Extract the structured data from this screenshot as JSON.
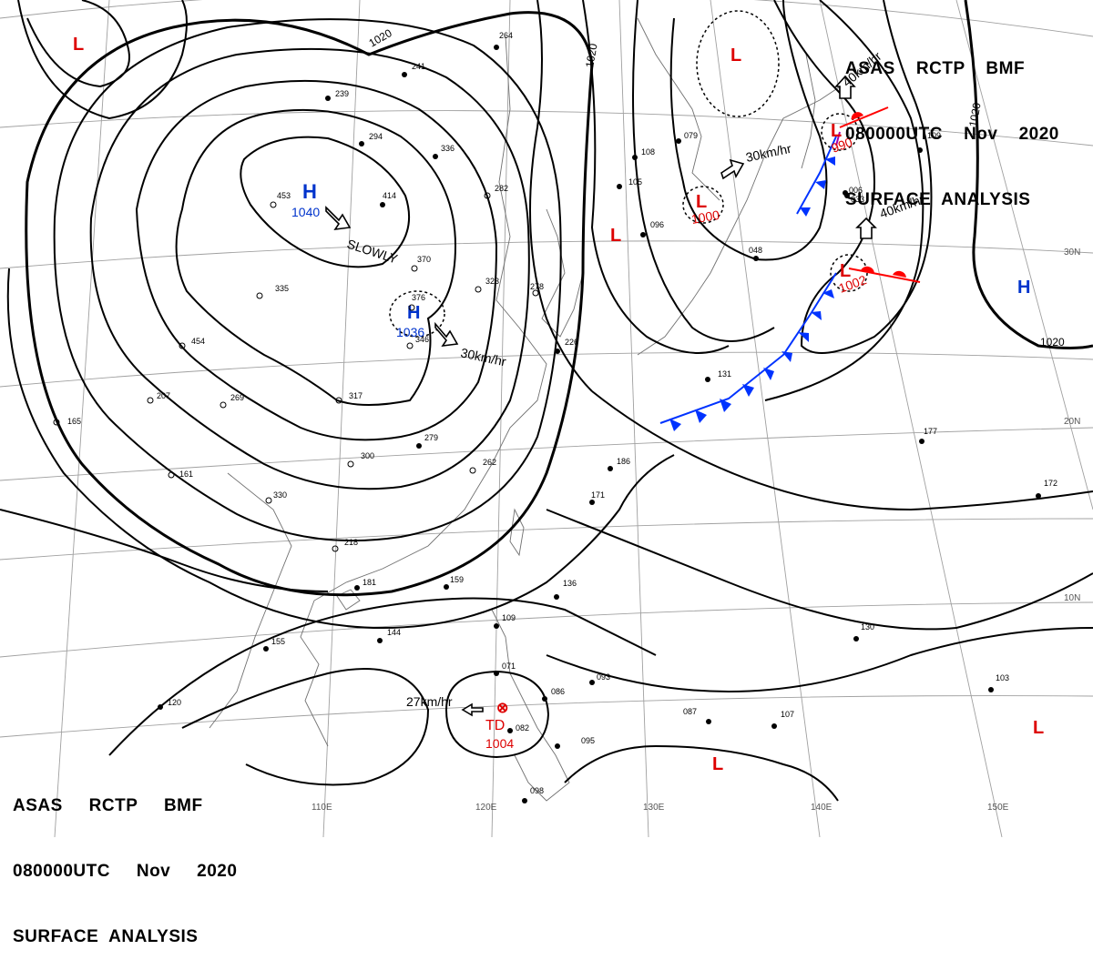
{
  "header": {
    "line1": "ASAS    RCTP    BMF",
    "line2": "080000UTC    Nov    2020",
    "line3": "SURFACE  ANALYSIS"
  },
  "footer": {
    "line1": "ASAS     RCTP     BMF",
    "line2": "080000UTC     Nov     2020",
    "line3": "SURFACE  ANALYSIS"
  },
  "latitude_labels": [
    "30N",
    "20N",
    "10N"
  ],
  "longitude_labels": [
    "110E",
    "120E",
    "130E",
    "140E",
    "150E"
  ],
  "isobar_labels": [
    "1020",
    "1020",
    "1020",
    "1020"
  ],
  "pressure_centers": [
    {
      "type": "H",
      "value": "1040",
      "color": "#0033cc"
    },
    {
      "type": "H",
      "value": "1036",
      "color": "#0033cc"
    },
    {
      "type": "H",
      "value": "",
      "color": "#0033cc"
    },
    {
      "type": "L",
      "value": "",
      "color": "#dd0000"
    },
    {
      "type": "L",
      "value": "",
      "color": "#dd0000"
    },
    {
      "type": "L",
      "value": "1000",
      "color": "#dd0000"
    },
    {
      "type": "L",
      "value": "990",
      "color": "#dd0000"
    },
    {
      "type": "L",
      "value": "1002",
      "color": "#dd0000"
    },
    {
      "type": "L",
      "value": "",
      "color": "#dd0000"
    },
    {
      "type": "L",
      "value": "",
      "color": "#dd0000"
    },
    {
      "type": "L",
      "value": "",
      "color": "#dd0000"
    },
    {
      "type": "TD",
      "value": "1004",
      "color": "#dd0000"
    }
  ],
  "movements": [
    "SLOWLY",
    "30km/hr",
    "30km/hr",
    "40km/hr",
    "40km/hr",
    "27km/hr"
  ],
  "stations": [
    "453",
    "414",
    "370",
    "376",
    "346",
    "335",
    "454",
    "317",
    "300",
    "269",
    "207",
    "165",
    "161",
    "330",
    "218",
    "181",
    "144",
    "155",
    "120",
    "264",
    "241",
    "239",
    "294",
    "336",
    "282",
    "323",
    "278",
    "226",
    "171",
    "186",
    "262",
    "279",
    "159",
    "136",
    "109",
    "071",
    "086",
    "093",
    "095",
    "082",
    "098",
    "087",
    "107",
    "130",
    "103",
    "177",
    "172",
    "108",
    "105",
    "096",
    "079",
    "131",
    "006",
    "033",
    "048",
    "109"
  ],
  "colors": {
    "high": "#0033cc",
    "low": "#dd0000",
    "cold_front": "#0033ff",
    "warm_front": "#ff0000",
    "isobar": "#000000",
    "grid": "#999999"
  }
}
